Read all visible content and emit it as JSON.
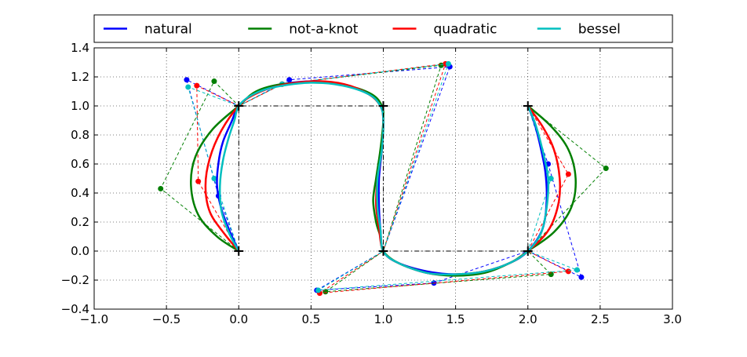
{
  "chart_data": {
    "type": "line",
    "title": "",
    "xlabel": "",
    "ylabel": "",
    "xlim": [
      -1.0,
      3.0
    ],
    "ylim": [
      -0.4,
      1.4
    ],
    "xticks": [
      "−1.0",
      "−0.5",
      "0.0",
      "0.5",
      "1.0",
      "1.5",
      "2.0",
      "2.5",
      "3.0"
    ],
    "yticks": [
      "−0.4",
      "−0.2",
      "0.0",
      "0.2",
      "0.4",
      "0.6",
      "0.8",
      "1.0",
      "1.2",
      "1.4"
    ],
    "grid": true,
    "legend_position": "top, outside, spanning full width",
    "data_points": {
      "x": [
        0,
        0,
        1,
        1,
        2,
        2
      ],
      "y": [
        0,
        1,
        1,
        0,
        0,
        1
      ],
      "style": "black dash-dot line with plus markers"
    },
    "series": [
      {
        "name": "natural",
        "color": "#0000ff",
        "control_polygon": [
          [
            0,
            0
          ],
          [
            -0.14,
            0.38
          ],
          [
            -0.36,
            1.18
          ],
          [
            0,
            1
          ],
          [
            0.35,
            1.18
          ],
          [
            1.46,
            1.27
          ],
          [
            1,
            0
          ],
          [
            0.54,
            -0.27
          ],
          [
            1.35,
            -0.22
          ],
          [
            2,
            0
          ],
          [
            2.37,
            -0.18
          ],
          [
            2.14,
            0.6
          ],
          [
            2,
            1
          ]
        ],
        "curve": [
          [
            0,
            0
          ],
          [
            -0.06,
            0.13
          ],
          [
            -0.12,
            0.29
          ],
          [
            -0.15,
            0.45
          ],
          [
            -0.14,
            0.61
          ],
          [
            -0.11,
            0.75
          ],
          [
            -0.05,
            0.89
          ],
          [
            0,
            1
          ],
          [
            0.1,
            1.08
          ],
          [
            0.25,
            1.14
          ],
          [
            0.5,
            1.17
          ],
          [
            0.72,
            1.15
          ],
          [
            0.9,
            1.08
          ],
          [
            0.98,
            1.0
          ],
          [
            1.0,
            0.9
          ],
          [
            0.99,
            0.7
          ],
          [
            0.97,
            0.5
          ],
          [
            0.97,
            0.3
          ],
          [
            0.98,
            0.15
          ],
          [
            1,
            0
          ],
          [
            1.1,
            -0.08
          ],
          [
            1.3,
            -0.14
          ],
          [
            1.5,
            -0.16
          ],
          [
            1.7,
            -0.14
          ],
          [
            1.88,
            -0.08
          ],
          [
            2,
            0
          ],
          [
            2.1,
            0.15
          ],
          [
            2.13,
            0.35
          ],
          [
            2.12,
            0.55
          ],
          [
            2.08,
            0.75
          ],
          [
            2.04,
            0.9
          ],
          [
            2,
            1
          ]
        ]
      },
      {
        "name": "not-a-knot",
        "color": "#007f00",
        "control_polygon": [
          [
            0,
            0
          ],
          [
            -0.54,
            0.43
          ],
          [
            -0.17,
            1.17
          ],
          [
            0,
            1
          ],
          [
            0.3,
            1.15
          ],
          [
            1.4,
            1.28
          ],
          [
            1,
            0
          ],
          [
            0.6,
            -0.28
          ],
          [
            2.16,
            -0.16
          ],
          [
            2,
            0
          ],
          [
            2.54,
            0.57
          ],
          [
            2,
            1
          ]
        ],
        "curve": [
          [
            0,
            0
          ],
          [
            -0.15,
            0.1
          ],
          [
            -0.28,
            0.25
          ],
          [
            -0.33,
            0.45
          ],
          [
            -0.3,
            0.65
          ],
          [
            -0.18,
            0.84
          ],
          [
            0,
            1
          ],
          [
            0.12,
            1.1
          ],
          [
            0.3,
            1.15
          ],
          [
            0.55,
            1.16
          ],
          [
            0.75,
            1.14
          ],
          [
            0.92,
            1.08
          ],
          [
            0.99,
            1.0
          ],
          [
            1.0,
            0.9
          ],
          [
            0.98,
            0.7
          ],
          [
            0.95,
            0.5
          ],
          [
            0.93,
            0.35
          ],
          [
            0.95,
            0.2
          ],
          [
            0.98,
            0.1
          ],
          [
            1,
            0
          ],
          [
            1.1,
            -0.08
          ],
          [
            1.3,
            -0.15
          ],
          [
            1.5,
            -0.17
          ],
          [
            1.7,
            -0.15
          ],
          [
            1.88,
            -0.08
          ],
          [
            2,
            0
          ],
          [
            2.18,
            0.13
          ],
          [
            2.3,
            0.3
          ],
          [
            2.33,
            0.5
          ],
          [
            2.28,
            0.7
          ],
          [
            2.16,
            0.86
          ],
          [
            2,
            1
          ]
        ]
      },
      {
        "name": "quadratic",
        "color": "#ff0000",
        "control_polygon": [
          [
            0,
            0
          ],
          [
            -0.28,
            0.48
          ],
          [
            -0.29,
            1.14
          ],
          [
            0,
            1
          ],
          [
            0.3,
            1.15
          ],
          [
            1.43,
            1.29
          ],
          [
            1,
            0
          ],
          [
            0.56,
            -0.29
          ],
          [
            2.28,
            -0.14
          ],
          [
            2,
            0
          ],
          [
            2.28,
            0.53
          ],
          [
            2,
            1
          ]
        ],
        "curve": [
          [
            0,
            0
          ],
          [
            -0.1,
            0.12
          ],
          [
            -0.2,
            0.27
          ],
          [
            -0.23,
            0.45
          ],
          [
            -0.2,
            0.64
          ],
          [
            -0.12,
            0.83
          ],
          [
            0,
            1
          ],
          [
            0.11,
            1.08
          ],
          [
            0.28,
            1.14
          ],
          [
            0.52,
            1.17
          ],
          [
            0.73,
            1.15
          ],
          [
            0.9,
            1.08
          ],
          [
            0.98,
            1.0
          ],
          [
            1.0,
            0.9
          ],
          [
            0.99,
            0.7
          ],
          [
            0.96,
            0.5
          ],
          [
            0.95,
            0.32
          ],
          [
            0.97,
            0.16
          ],
          [
            1,
            0
          ],
          [
            1.1,
            -0.08
          ],
          [
            1.3,
            -0.15
          ],
          [
            1.5,
            -0.16
          ],
          [
            1.7,
            -0.14
          ],
          [
            1.88,
            -0.08
          ],
          [
            2,
            0
          ],
          [
            2.14,
            0.14
          ],
          [
            2.21,
            0.32
          ],
          [
            2.22,
            0.5
          ],
          [
            2.18,
            0.7
          ],
          [
            2.1,
            0.86
          ],
          [
            2,
            1
          ]
        ]
      },
      {
        "name": "bessel",
        "color": "#00bfbf",
        "control_polygon": [
          [
            0,
            0
          ],
          [
            -0.17,
            0.5
          ],
          [
            -0.35,
            1.13
          ],
          [
            0,
            1
          ],
          [
            0.3,
            1.15
          ],
          [
            1.45,
            1.29
          ],
          [
            1,
            0
          ],
          [
            0.55,
            -0.27
          ],
          [
            2.34,
            -0.13
          ],
          [
            2,
            0
          ],
          [
            2.16,
            0.5
          ],
          [
            2,
            1
          ]
        ],
        "curve": [
          [
            0,
            0
          ],
          [
            -0.07,
            0.13
          ],
          [
            -0.12,
            0.28
          ],
          [
            -0.13,
            0.45
          ],
          [
            -0.11,
            0.62
          ],
          [
            -0.07,
            0.78
          ],
          [
            -0.03,
            0.9
          ],
          [
            0,
            1
          ],
          [
            0.1,
            1.08
          ],
          [
            0.25,
            1.13
          ],
          [
            0.5,
            1.16
          ],
          [
            0.72,
            1.14
          ],
          [
            0.9,
            1.08
          ],
          [
            0.98,
            1.0
          ],
          [
            1.0,
            0.9
          ],
          [
            0.99,
            0.7
          ],
          [
            0.96,
            0.5
          ],
          [
            0.96,
            0.3
          ],
          [
            0.98,
            0.15
          ],
          [
            1,
            0
          ],
          [
            1.1,
            -0.08
          ],
          [
            1.3,
            -0.15
          ],
          [
            1.5,
            -0.16
          ],
          [
            1.7,
            -0.14
          ],
          [
            1.88,
            -0.08
          ],
          [
            2,
            0
          ],
          [
            2.09,
            0.12
          ],
          [
            2.13,
            0.3
          ],
          [
            2.14,
            0.5
          ],
          [
            2.1,
            0.7
          ],
          [
            2.05,
            0.88
          ],
          [
            2,
            1
          ]
        ]
      }
    ]
  }
}
